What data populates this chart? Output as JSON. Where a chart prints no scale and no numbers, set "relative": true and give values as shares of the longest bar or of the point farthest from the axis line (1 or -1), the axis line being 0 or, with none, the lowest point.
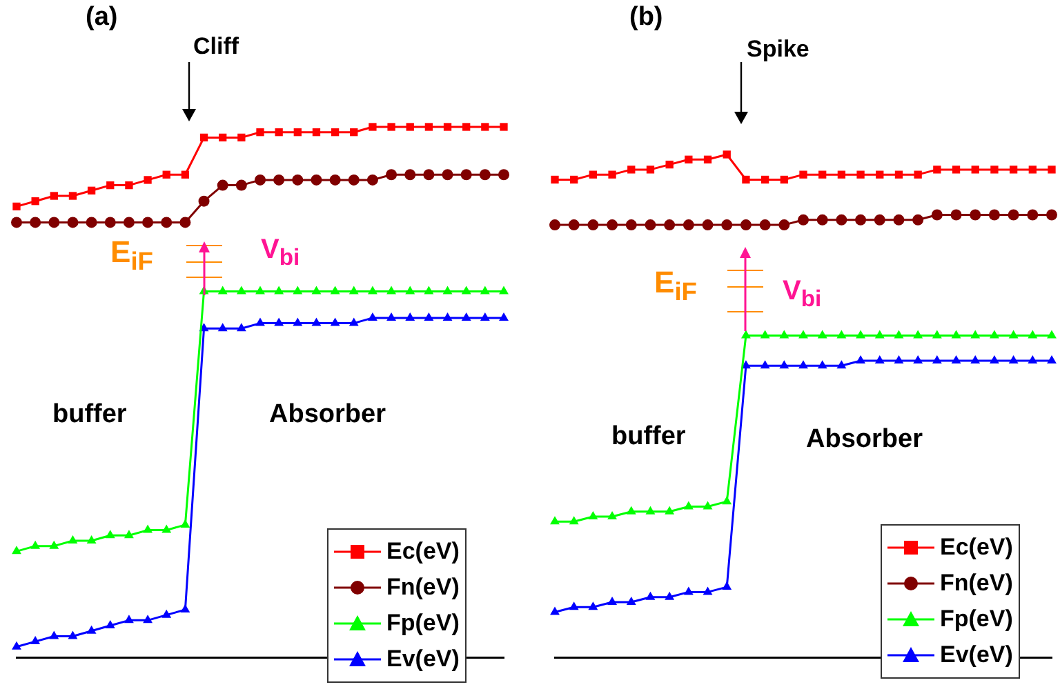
{
  "chart_data": [
    {
      "type": "line",
      "title": "(a)",
      "relative": true,
      "grid": false,
      "legend": "bottom right",
      "categories": [
        null,
        null,
        null,
        null,
        null,
        null,
        null,
        null,
        null,
        null,
        null,
        null,
        null,
        null,
        null,
        null,
        null,
        null,
        null,
        null,
        null,
        null,
        null,
        null,
        null,
        null,
        null
      ],
      "series": [
        {
          "name": "Ec(eV)",
          "color": "#ff0000",
          "marker": "square",
          "values": [
            0.85,
            0.86,
            0.87,
            0.87,
            0.88,
            0.89,
            0.89,
            0.9,
            0.91,
            0.91,
            0.98,
            0.98,
            0.98,
            0.99,
            0.99,
            0.99,
            0.99,
            0.99,
            0.99,
            1.0,
            1.0,
            1.0,
            1.0,
            1.0,
            1.0,
            1.0,
            1.0
          ]
        },
        {
          "name": "Fn(eV)",
          "color": "#800000",
          "marker": "circle",
          "values": [
            0.82,
            0.82,
            0.82,
            0.82,
            0.82,
            0.82,
            0.82,
            0.82,
            0.82,
            0.82,
            0.86,
            0.89,
            0.89,
            0.9,
            0.9,
            0.9,
            0.9,
            0.9,
            0.9,
            0.9,
            0.91,
            0.91,
            0.91,
            0.91,
            0.91,
            0.91,
            0.91
          ]
        },
        {
          "name": "Fp(eV)",
          "color": "#00ff00",
          "marker": "triangle",
          "values": [
            0.2,
            0.21,
            0.21,
            0.22,
            0.22,
            0.23,
            0.23,
            0.24,
            0.24,
            0.25,
            0.69,
            0.69,
            0.69,
            0.69,
            0.69,
            0.69,
            0.69,
            0.69,
            0.69,
            0.69,
            0.69,
            0.69,
            0.69,
            0.69,
            0.69,
            0.69,
            0.69
          ]
        },
        {
          "name": "Ev(eV)",
          "color": "#0000ff",
          "marker": "triangle",
          "values": [
            0.02,
            0.03,
            0.04,
            0.04,
            0.05,
            0.06,
            0.07,
            0.07,
            0.08,
            0.09,
            0.62,
            0.62,
            0.62,
            0.63,
            0.63,
            0.63,
            0.63,
            0.63,
            0.63,
            0.64,
            0.64,
            0.64,
            0.64,
            0.64,
            0.64,
            0.64,
            0.64
          ]
        }
      ],
      "annotations": [
        "Cliff",
        "E$_{iF}$",
        "V$_{bi}$",
        "buffer",
        "Absorber"
      ]
    },
    {
      "type": "line",
      "title": "(b)",
      "relative": true,
      "grid": false,
      "legend": "bottom right",
      "categories": [
        null,
        null,
        null,
        null,
        null,
        null,
        null,
        null,
        null,
        null,
        null,
        null,
        null,
        null,
        null,
        null,
        null,
        null,
        null,
        null,
        null,
        null,
        null,
        null,
        null,
        null,
        null
      ],
      "series": [
        {
          "name": "Ec(eV)",
          "color": "#ff0000",
          "marker": "square",
          "values": [
            0.95,
            0.95,
            0.96,
            0.96,
            0.97,
            0.97,
            0.98,
            0.99,
            0.99,
            1.0,
            0.95,
            0.95,
            0.95,
            0.96,
            0.96,
            0.96,
            0.96,
            0.96,
            0.96,
            0.96,
            0.97,
            0.97,
            0.97,
            0.97,
            0.97,
            0.97,
            0.97
          ]
        },
        {
          "name": "Fn(eV)",
          "color": "#800000",
          "marker": "circle",
          "values": [
            0.86,
            0.86,
            0.86,
            0.86,
            0.86,
            0.86,
            0.86,
            0.86,
            0.86,
            0.86,
            0.86,
            0.86,
            0.86,
            0.87,
            0.87,
            0.87,
            0.87,
            0.87,
            0.87,
            0.87,
            0.88,
            0.88,
            0.88,
            0.88,
            0.88,
            0.88,
            0.88
          ]
        },
        {
          "name": "Fp(eV)",
          "color": "#00ff00",
          "marker": "triangle",
          "values": [
            0.27,
            0.27,
            0.28,
            0.28,
            0.29,
            0.29,
            0.29,
            0.3,
            0.3,
            0.31,
            0.64,
            0.64,
            0.64,
            0.64,
            0.64,
            0.64,
            0.64,
            0.64,
            0.64,
            0.64,
            0.64,
            0.64,
            0.64,
            0.64,
            0.64,
            0.64,
            0.64
          ]
        },
        {
          "name": "Ev(eV)",
          "color": "#0000ff",
          "marker": "triangle",
          "values": [
            0.09,
            0.1,
            0.1,
            0.11,
            0.11,
            0.12,
            0.12,
            0.13,
            0.13,
            0.14,
            0.58,
            0.58,
            0.58,
            0.58,
            0.58,
            0.58,
            0.59,
            0.59,
            0.59,
            0.59,
            0.59,
            0.59,
            0.59,
            0.59,
            0.59,
            0.59,
            0.59
          ]
        }
      ],
      "annotations": [
        "Spike",
        "E$_{iF}$",
        "V$_{bi}$",
        "buffer",
        "Absorber"
      ]
    }
  ]
}
